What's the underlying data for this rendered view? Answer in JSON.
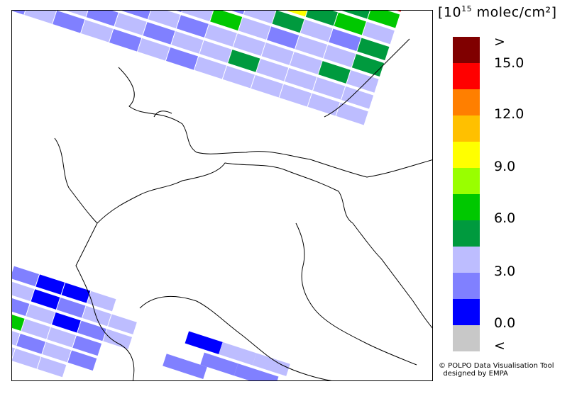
{
  "unit_label": {
    "prefix": "[10",
    "exponent": "15",
    "suffix": " molec/cm²]"
  },
  "legend": {
    "colors": [
      "#800000",
      "#ff0000",
      "#ff7f00",
      "#ffc000",
      "#ffff00",
      "#99ff00",
      "#00c800",
      "#009a3e",
      "#bdbdff",
      "#8080ff",
      "#0000ff",
      "#c8c8c8"
    ],
    "labels": [
      ">",
      "15.0",
      "12.0",
      "9.0",
      "6.0",
      "3.0",
      "0.0",
      "<"
    ]
  },
  "credit": {
    "line1": "© POLPO Data Visualisation Tool",
    "line2": "designed by EMPA"
  }
}
